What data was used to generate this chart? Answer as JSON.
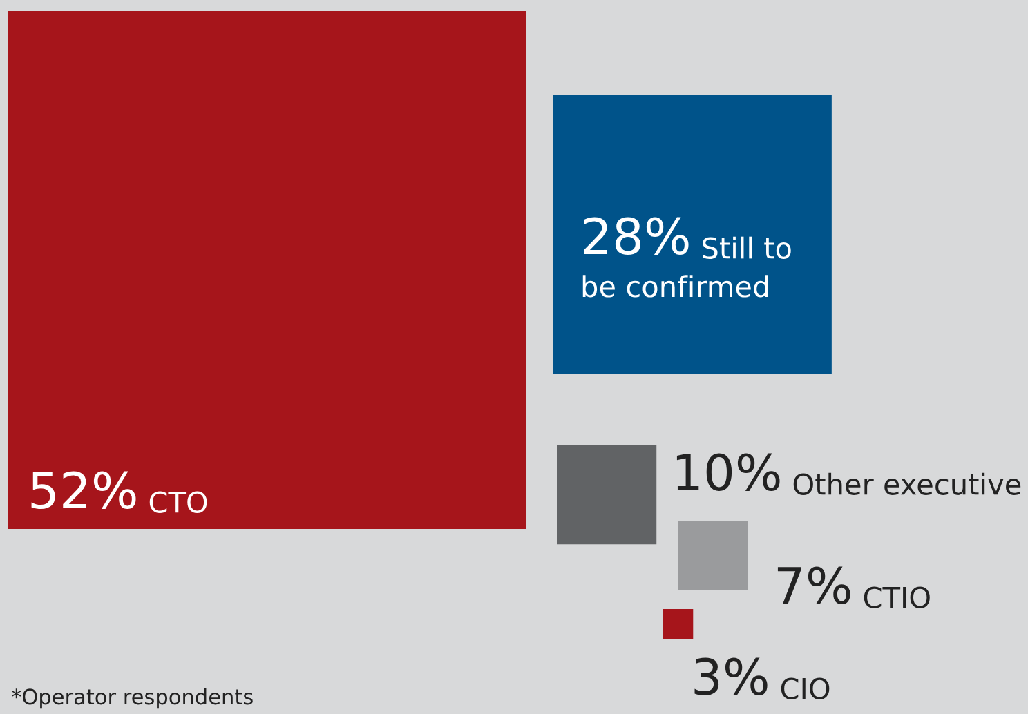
{
  "chart_data": {
    "type": "other",
    "categories": [
      "CTO",
      "Still to be confirmed",
      "Other executive",
      "CTIO",
      "CIO"
    ],
    "values": [
      52,
      28,
      10,
      7,
      3
    ],
    "value_labels": [
      "52%",
      "28%",
      "10%",
      "7%",
      "3%"
    ],
    "colors": [
      "#a6151b",
      "#00538a",
      "#616365",
      "#9a9b9d",
      "#a6151b"
    ],
    "annotations": [
      "*Operator respondents"
    ]
  }
}
